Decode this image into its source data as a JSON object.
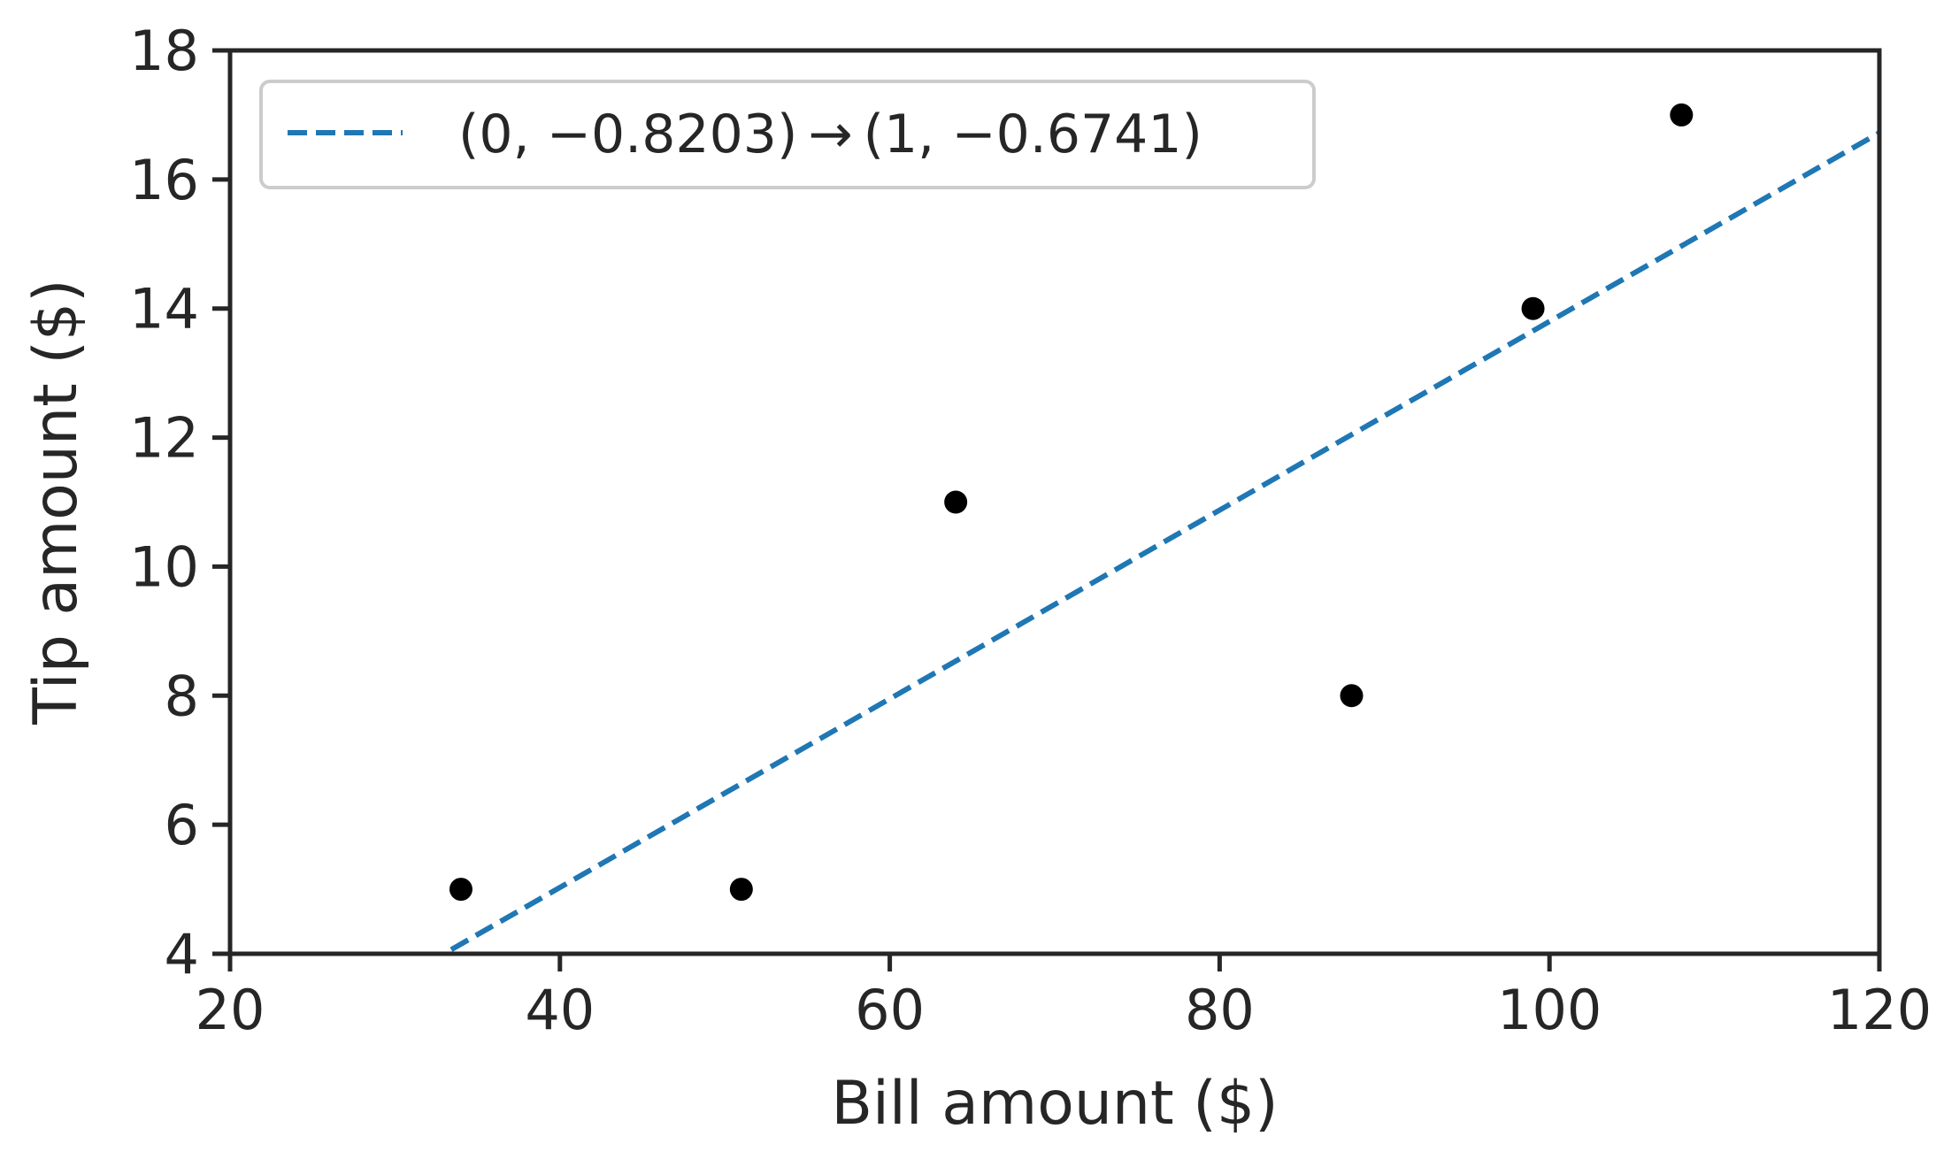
{
  "chart_data": {
    "type": "scatter",
    "title": "",
    "xlabel": "Bill amount ($)",
    "ylabel": "Tip amount ($)",
    "xlim": [
      20,
      120
    ],
    "ylim": [
      4,
      18
    ],
    "xticks": [
      20,
      40,
      60,
      80,
      100,
      120
    ],
    "yticks": [
      4,
      6,
      8,
      10,
      12,
      14,
      16,
      18
    ],
    "grid": false,
    "legend_position": "top-left",
    "points": [
      {
        "x": 34,
        "y": 5
      },
      {
        "x": 51,
        "y": 5
      },
      {
        "x": 64,
        "y": 11
      },
      {
        "x": 88,
        "y": 8
      },
      {
        "x": 99,
        "y": 14
      },
      {
        "x": 108,
        "y": 17
      }
    ],
    "point_color": "#000000",
    "fit_line": {
      "label": "(0, −0.8203) → (1, −0.6741)",
      "style": "dashed",
      "color": "#1f77b4",
      "slope": 0.1462,
      "intercept": -0.8203
    }
  }
}
